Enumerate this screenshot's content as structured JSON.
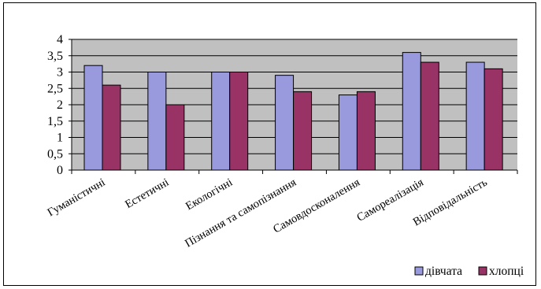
{
  "chart_data": {
    "type": "bar",
    "title": "",
    "xlabel": "",
    "ylabel": "",
    "categories": [
      "Гуманістичні",
      "Естетичні",
      "Екологічні",
      "Пізнання та самопізнання",
      "Самовдосконалення",
      "Самореалізація",
      "Відповідальність"
    ],
    "series": [
      {
        "name": "дівчата",
        "values": [
          3.2,
          3.0,
          3.0,
          2.9,
          2.3,
          3.6,
          3.3
        ],
        "color": "#9999dd"
      },
      {
        "name": "хлопці",
        "values": [
          2.6,
          2.0,
          3.0,
          2.4,
          2.4,
          3.3,
          3.1
        ],
        "color": "#993366"
      }
    ],
    "ylim": [
      0,
      4
    ],
    "yticks": [
      "0",
      "0,5",
      "1",
      "1,5",
      "2",
      "2,5",
      "3",
      "3,5",
      "4"
    ],
    "grid": true,
    "plot_background": "#c0c0c0",
    "legend_position": "bottom-right"
  }
}
